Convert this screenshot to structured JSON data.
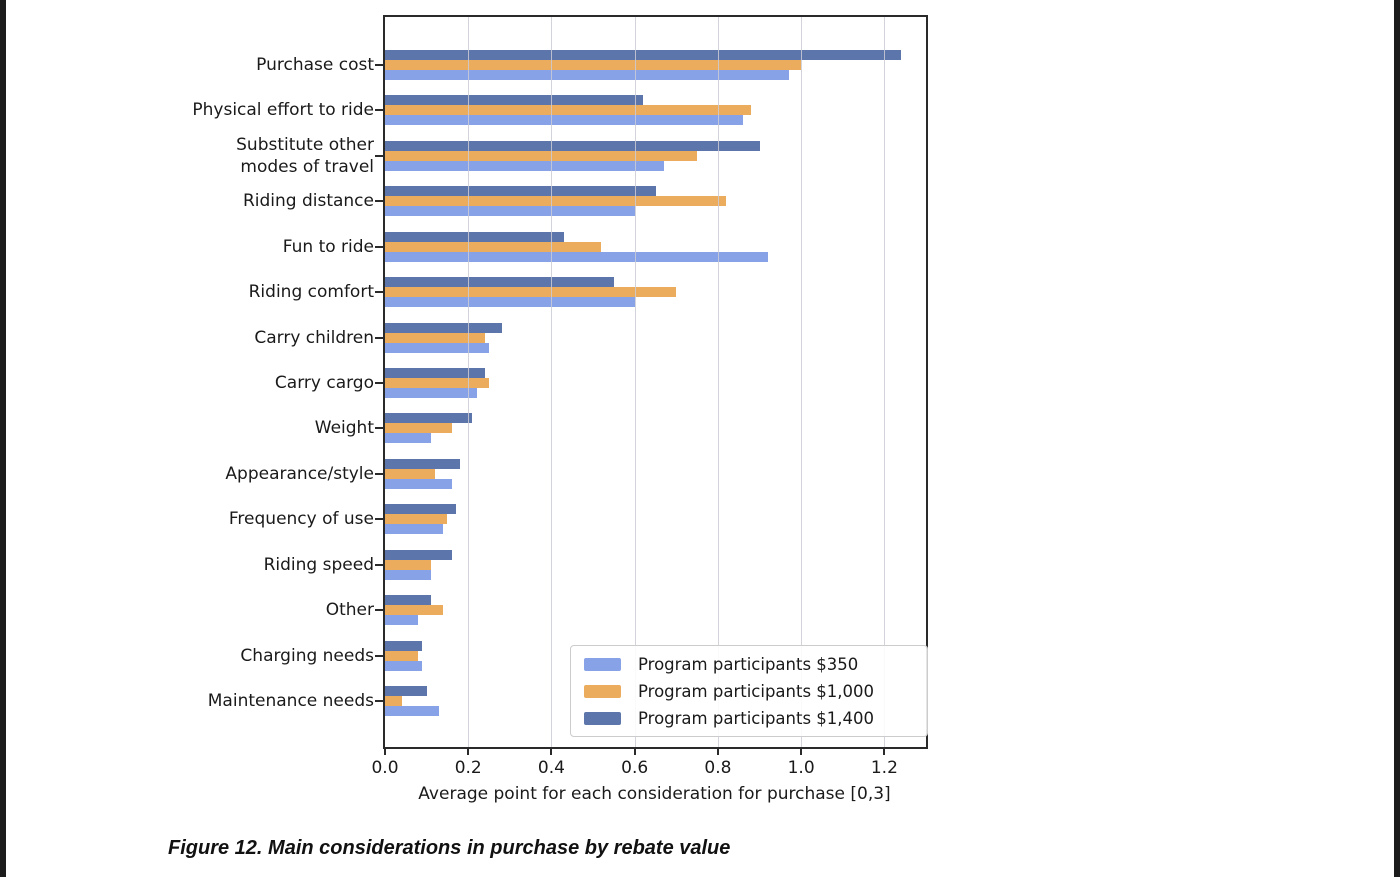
{
  "caption": "Figure 12. Main considerations in purchase by rebate value",
  "chart_data": {
    "type": "bar",
    "orientation": "horizontal",
    "xlabel": "Average point for each consideration for purchase [0,3]",
    "xlim": [
      0,
      1.3
    ],
    "xticks": [
      0.0,
      0.2,
      0.4,
      0.6,
      0.8,
      1.0,
      1.2
    ],
    "grid": true,
    "legend_position": "lower right",
    "categories": [
      "Purchase cost",
      "Physical effort to ride",
      "Substitute other\nmodes of travel",
      "Riding distance",
      "Fun to ride",
      "Riding comfort",
      "Carry children",
      "Carry cargo",
      "Weight",
      "Appearance/style",
      "Frequency of use",
      "Riding speed",
      "Other",
      "Charging needs",
      "Maintenance needs"
    ],
    "series": [
      {
        "name": "Program participants $350",
        "color": "#88a2e8",
        "values": [
          0.97,
          0.86,
          0.67,
          0.6,
          0.92,
          0.6,
          0.25,
          0.22,
          0.11,
          0.16,
          0.14,
          0.11,
          0.08,
          0.09,
          0.13
        ]
      },
      {
        "name": "Program participants $1,000",
        "color": "#ecac5d",
        "values": [
          1.0,
          0.88,
          0.75,
          0.82,
          0.52,
          0.7,
          0.24,
          0.25,
          0.16,
          0.12,
          0.15,
          0.11,
          0.14,
          0.08,
          0.04
        ]
      },
      {
        "name": "Program participants $1,400",
        "color": "#5c75aa",
        "values": [
          1.24,
          0.62,
          0.9,
          0.65,
          0.43,
          0.55,
          0.28,
          0.24,
          0.21,
          0.18,
          0.17,
          0.16,
          0.11,
          0.09,
          0.1
        ]
      }
    ],
    "bar_order_top_to_bottom": [
      "Program participants $1,400",
      "Program participants $1,000",
      "Program participants $350"
    ]
  }
}
